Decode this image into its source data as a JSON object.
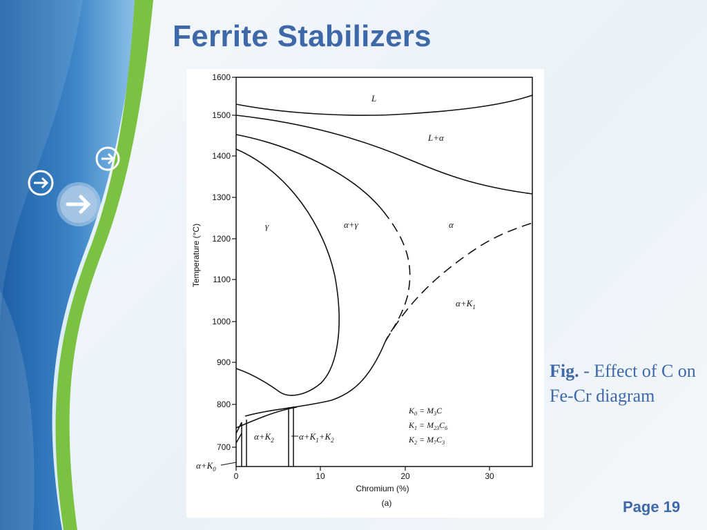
{
  "slide": {
    "title": "Ferrite Stabilizers",
    "page_label": "Page 19",
    "caption": {
      "lead": "Fig.",
      "text": " - Effect of C on Fe-Cr diagram"
    }
  },
  "diagram": {
    "ylabel": "Temperature (°C)",
    "xlabel": "Chromium (%)",
    "sublabel": "(a)",
    "y_ticks": [
      "1600",
      "1500",
      "1400",
      "1300",
      "1200",
      "1100",
      "1000",
      "900",
      "800",
      "700"
    ],
    "x_ticks": [
      "0",
      "10",
      "20",
      "30"
    ],
    "regions": {
      "L": "L",
      "L_alpha": "L+α",
      "gamma": "γ",
      "alpha_gamma": "α+γ",
      "alpha": "α",
      "alpha_K1": "α+K",
      "alpha_K1_sub": "1",
      "alpha_K2": "α+K",
      "alpha_K2_sub": "2",
      "alpha_K1_K2_a": "α+K",
      "alpha_K1_K2_sub1": "1",
      "alpha_K1_K2_b": "+K",
      "alpha_K1_K2_sub2": "2",
      "alpha_K0": "α+K",
      "alpha_K0_sub": "0"
    },
    "legend": [
      {
        "k": "K",
        "ks": "0",
        "eq": " = M",
        "ms": "3",
        "tail": "C",
        "ts": ""
      },
      {
        "k": "K",
        "ks": "1",
        "eq": " = M",
        "ms": "23",
        "tail": "C",
        "ts": "6"
      },
      {
        "k": "K",
        "ks": "2",
        "eq": " = M",
        "ms": "7",
        "tail": "C",
        "ts": "3"
      }
    ]
  },
  "colors": {
    "title": "#3f68a8",
    "green_band": "#7cc242",
    "blue_sidebar": "#2a6cb0"
  },
  "icons": [
    "arrow-right-icon",
    "arrow-right-icon",
    "arrow-right-icon"
  ]
}
